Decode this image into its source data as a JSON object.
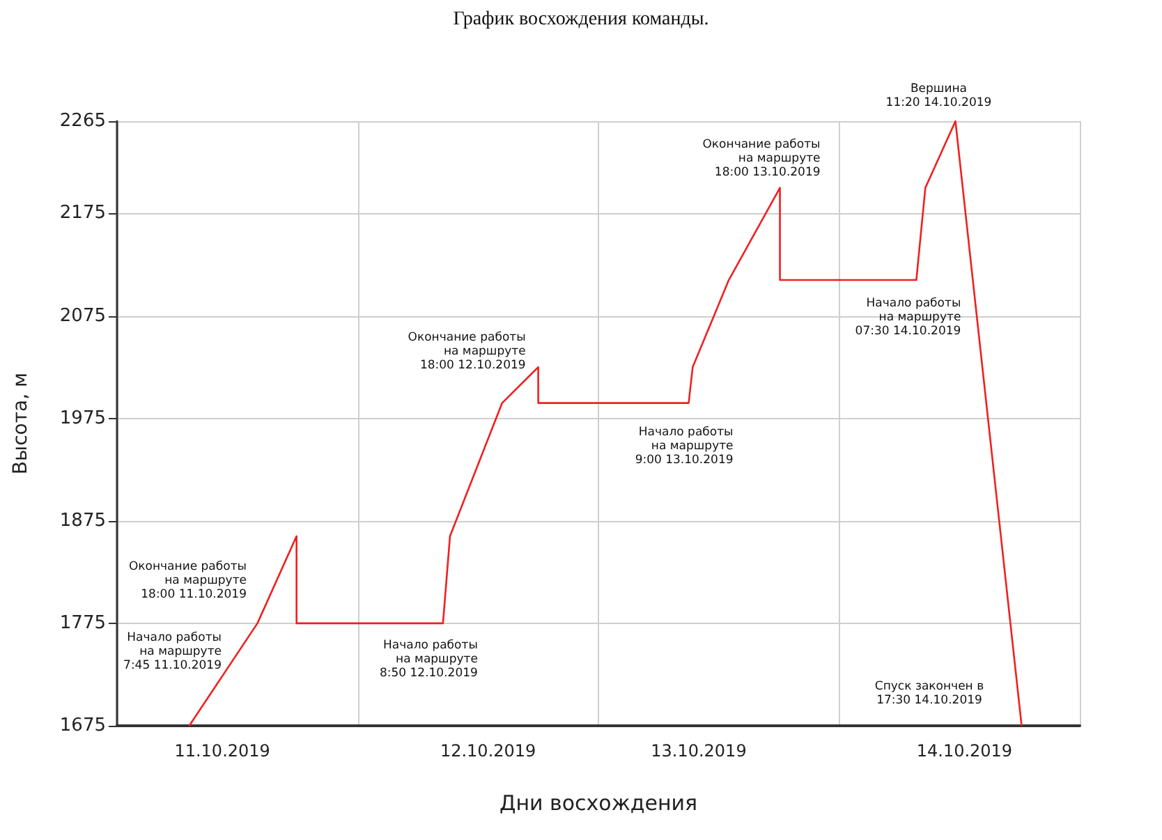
{
  "chart_data": {
    "type": "line",
    "title": "График восхождения команды.",
    "xlabel": "Дни восхождения",
    "ylabel": "Высота, м",
    "x": [
      "2019-10-11T07:12",
      "2019-10-11T14:00",
      "2019-10-11T17:54",
      "2019-10-11T17:54",
      "2019-10-12T08:30",
      "2019-10-12T09:12",
      "2019-10-12T14:24",
      "2019-10-12T18:00",
      "2019-10-12T18:00",
      "2019-10-13T09:00",
      "2019-10-13T09:24",
      "2019-10-13T13:00",
      "2019-10-13T18:06",
      "2019-10-13T18:06",
      "2019-10-14T07:42",
      "2019-10-14T08:36",
      "2019-10-14T11:36",
      "2019-10-14T18:12"
    ],
    "series": [
      {
        "color": "#f02020",
        "values": [
          1675,
          1775,
          1860,
          1775,
          1775,
          1860,
          1990,
          2025,
          1990,
          1990,
          2025,
          2110,
          2200,
          2110,
          2110,
          2200,
          2265,
          1675
        ]
      }
    ],
    "xlim": [
      "2019-10-11T00:00",
      "2019-10-15T00:00"
    ],
    "xticks": [
      {
        "value": "2019-10-11T00:00",
        "label": null
      },
      {
        "value": "2019-10-11T10:30",
        "label": "11.10.2019"
      },
      {
        "value": "2019-10-12T00:00",
        "label": null
      },
      {
        "value": "2019-10-12T13:00",
        "label": "12.10.2019"
      },
      {
        "value": "2019-10-13T00:00",
        "label": null
      },
      {
        "value": "2019-10-13T10:00",
        "label": "13.10.2019"
      },
      {
        "value": "2019-10-14T00:00",
        "label": null
      },
      {
        "value": "2019-10-14T12:30",
        "label": "14.10.2019"
      },
      {
        "value": "2019-10-15T00:00",
        "label": null
      }
    ],
    "ylim": [
      1675,
      2265
    ],
    "yticks": [
      1675,
      1775,
      1875,
      1975,
      2075,
      2175,
      2265
    ],
    "grid": true,
    "marker": "none",
    "line_style": "solid",
    "annotations": [
      "Начало работы\nна маршруте\n7:45 11.10.2019",
      "Окончание работы\nна маршруте\n18:00 11.10.2019",
      {
        "text": "Начало работы\nна маршруте\n8:50 12.10.2019",
        "x": "2019-10-12T08:30",
        "y": 1775
      },
      {
        "text": "Окончание работы\nна маршруте\n18:00 12.10.2019",
        "x": "2019-10-12T18:00",
        "y": 2025
      },
      {
        "text": "Начало работы\nна маршруте\n9:00 13.10.2019",
        "x": "2019-10-13T09:00",
        "y": 1990
      },
      {
        "text": "Окончание работы\nна маршруте\n18:00 13.10.2019",
        "x": "2019-10-13T18:06",
        "y": 2200
      },
      {
        "text": "Начало работы\nна маршруте\n07:30 14.10.2019",
        "x": "2019-10-14T07:42",
        "y": 2110
      },
      {
        "text": "Вершина\n11:20 14.10.2019",
        "x": "2019-10-14T11:36",
        "y": 2265
      },
      "Спуск закончен в\n17:30 14.10.2019"
    ]
  }
}
